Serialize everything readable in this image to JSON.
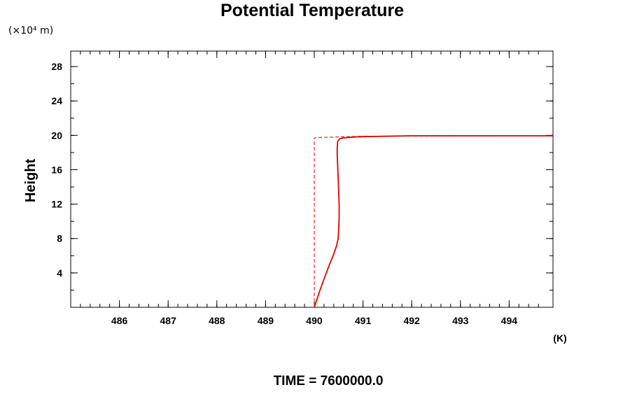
{
  "chart_data": {
    "type": "line",
    "title": "Potential Temperature",
    "xlabel": "(K)",
    "ylabel": "Height",
    "y_units": "(×10⁴ m)",
    "footer": "TIME = 7600000.0",
    "xlim": [
      485.0,
      494.9
    ],
    "ylim": [
      0,
      29.8
    ],
    "x_ticks": [
      486,
      487,
      488,
      489,
      490,
      491,
      492,
      493,
      494
    ],
    "y_ticks": [
      4,
      8,
      12,
      16,
      20,
      24,
      28
    ],
    "x_minor_step": 0.2,
    "y_minor_step": 2,
    "grid": false,
    "legend": "none",
    "series": [
      {
        "style": "solid",
        "color": "#e00000",
        "x": [
          490.0,
          490.1,
          490.2,
          490.3,
          490.4,
          490.46,
          490.49,
          490.5,
          490.51,
          490.51,
          490.5,
          490.49,
          490.48,
          490.47,
          490.47,
          490.48,
          490.52,
          490.6,
          490.8,
          491.0,
          492.0,
          493.0,
          494.9
        ],
        "y": [
          0.0,
          1.7,
          3.3,
          4.8,
          6.2,
          7.2,
          8.0,
          9.0,
          10.5,
          12.0,
          13.5,
          15.0,
          16.5,
          17.7,
          18.5,
          19.3,
          19.6,
          19.7,
          19.8,
          19.85,
          19.95,
          19.95,
          19.95
        ]
      },
      {
        "style": "dashed",
        "color": "#e00000",
        "x": [
          490.0,
          490.0,
          490.0,
          490.1,
          490.4,
          490.7,
          491.0,
          494.9
        ],
        "y": [
          0.0,
          10.0,
          19.7,
          19.75,
          19.8,
          19.85,
          19.9,
          19.95
        ]
      }
    ]
  }
}
